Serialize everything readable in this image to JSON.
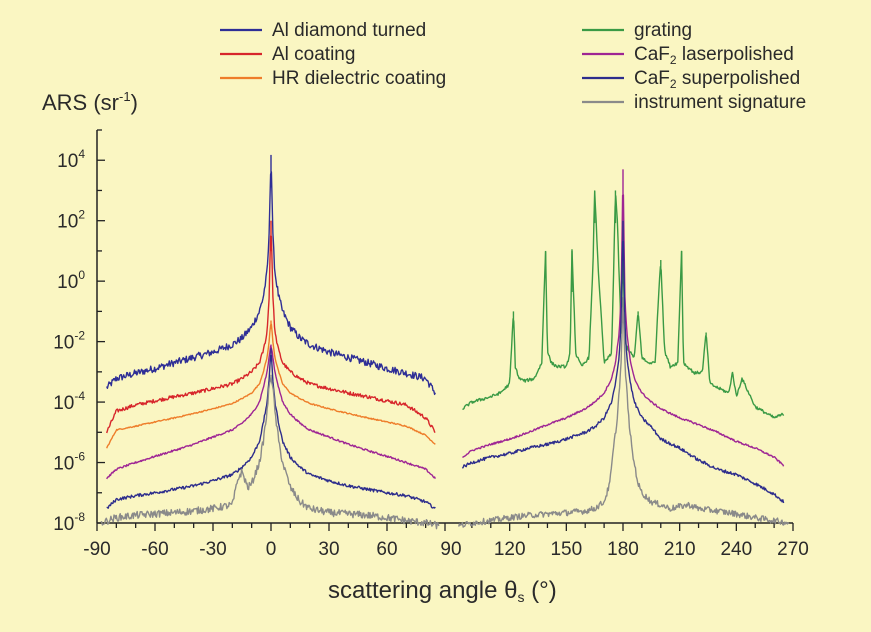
{
  "colors": {
    "background": "#FAF6C2",
    "axis": "#222222",
    "al_diamond": "#2E2E96",
    "al_coating": "#D7262B",
    "hr_dielectric": "#EE7D2A",
    "grating": "#3A9A45",
    "caf2_laser": "#9E2594",
    "caf2_super": "#2D2D8C",
    "instrument": "#8A8A8A"
  },
  "chart_data": {
    "type": "line",
    "ylabel": "ARS (sr",
    "ylabel_exp": "-1",
    "ylabel_close": ")",
    "xlabel": "scattering angle  θ",
    "xlabel_sub": "s",
    "xlabel_unit": " (°)",
    "y_scale": "log",
    "ylim": [
      1e-08,
      100000
    ],
    "y_tick_base": "10",
    "y_tick_exponents": [
      "4",
      "2",
      "0",
      "-2",
      "-4",
      "-6",
      "-8"
    ],
    "x_tick_labels": [
      "-90",
      "-60",
      "-30",
      "0",
      "30",
      "60",
      "90",
      "120",
      "150",
      "180",
      "210",
      "240",
      "270"
    ],
    "left_panel_xlim": [
      -90,
      90
    ],
    "right_panel_xlim": [
      90,
      270
    ],
    "legend_placement": "top",
    "legend": [
      {
        "label": "Al diamond turned",
        "color": "#2E2E96"
      },
      {
        "label": "Al coating",
        "color": "#D7262B"
      },
      {
        "label": "HR dielectric coating",
        "color": "#EE7D2A"
      },
      {
        "label": "grating",
        "color": "#3A9A45"
      },
      {
        "label": "CaF",
        "sub": "2",
        "rest": " laserpolished",
        "color": "#9E2594"
      },
      {
        "label": "CaF",
        "sub": "2",
        "rest": " superpolished",
        "color": "#2D2D8C"
      },
      {
        "label": "instrument signature",
        "color": "#8A8A8A"
      }
    ],
    "series": [
      {
        "name": "Al diamond turned",
        "panel": "left",
        "color": "#2E2E96",
        "x": [
          -85,
          -80,
          -70,
          -60,
          -50,
          -40,
          -30,
          -20,
          -15,
          -10,
          -6,
          -4,
          -2,
          -1,
          0,
          1,
          2,
          4,
          6,
          10,
          15,
          20,
          30,
          40,
          50,
          60,
          70,
          80,
          85
        ],
        "y": [
          0.0003,
          0.0006,
          0.0009,
          0.0013,
          0.002,
          0.003,
          0.0045,
          0.008,
          0.013,
          0.03,
          0.1,
          0.3,
          2,
          30,
          15000,
          30,
          2,
          0.3,
          0.1,
          0.03,
          0.013,
          0.008,
          0.0045,
          0.003,
          0.002,
          0.0013,
          0.0009,
          0.0006,
          0.0002
        ]
      },
      {
        "name": "Al coating",
        "panel": "left",
        "color": "#D7262B",
        "x": [
          -85,
          -80,
          -70,
          -60,
          -50,
          -40,
          -30,
          -20,
          -15,
          -10,
          -6,
          -4,
          -2,
          -1,
          0,
          1,
          2,
          4,
          6,
          10,
          15,
          20,
          30,
          40,
          50,
          60,
          70,
          80,
          85
        ],
        "y": [
          1e-05,
          5e-05,
          8e-05,
          0.00011,
          0.00015,
          0.0002,
          0.00028,
          0.0004,
          0.0006,
          0.001,
          0.002,
          0.005,
          0.02,
          0.3,
          100,
          0.3,
          0.02,
          0.005,
          0.002,
          0.001,
          0.0006,
          0.0004,
          0.00028,
          0.0002,
          0.00015,
          0.00011,
          8e-05,
          3e-05,
          1e-05
        ]
      },
      {
        "name": "HR dielectric coating",
        "panel": "left",
        "color": "#EE7D2A",
        "x": [
          -85,
          -80,
          -70,
          -60,
          -50,
          -40,
          -30,
          -20,
          -15,
          -10,
          -6,
          -4,
          -2,
          -1,
          0,
          1,
          2,
          4,
          6,
          10,
          15,
          20,
          30,
          40,
          50,
          60,
          70,
          80,
          85
        ],
        "y": [
          3e-06,
          1.2e-05,
          1.6e-05,
          2.2e-05,
          3e-05,
          4.2e-05,
          6e-05,
          9e-05,
          0.00013,
          0.0002,
          0.0004,
          0.001,
          0.003,
          0.01,
          0.05,
          0.01,
          0.003,
          0.001,
          0.0004,
          0.0002,
          0.00013,
          9e-05,
          6e-05,
          4.2e-05,
          3e-05,
          2.2e-05,
          1.6e-05,
          8e-06,
          4e-06
        ]
      },
      {
        "name": "CaF2 laserpolished (left)",
        "panel": "left",
        "color": "#9E2594",
        "x": [
          -85,
          -80,
          -70,
          -60,
          -50,
          -40,
          -30,
          -20,
          -15,
          -10,
          -6,
          -4,
          -2,
          -1,
          0,
          1,
          2,
          4,
          6,
          10,
          15,
          20,
          30,
          40,
          50,
          60,
          70,
          80,
          85
        ],
        "y": [
          3e-07,
          6e-07,
          1e-06,
          1.6e-06,
          2.5e-06,
          4e-06,
          7e-06,
          1.2e-05,
          2e-05,
          4e-05,
          0.0001,
          0.0003,
          0.001,
          0.003,
          0.008,
          0.003,
          0.001,
          0.0003,
          0.0001,
          4e-05,
          2e-05,
          1.2e-05,
          7e-06,
          4e-06,
          2.5e-06,
          1.6e-06,
          1e-06,
          6e-07,
          3e-07
        ]
      },
      {
        "name": "CaF2 superpolished (left)",
        "panel": "left",
        "color": "#2D2D8C",
        "x": [
          -85,
          -80,
          -70,
          -60,
          -50,
          -40,
          -30,
          -20,
          -15,
          -10,
          -6,
          -4,
          -2,
          -1,
          0,
          1,
          2,
          4,
          6,
          10,
          15,
          20,
          30,
          40,
          50,
          60,
          70,
          80,
          85
        ],
        "y": [
          3e-08,
          6e-08,
          8e-08,
          1e-07,
          1.3e-07,
          1.7e-07,
          2.5e-07,
          4e-07,
          7e-07,
          1.5e-06,
          5e-06,
          2e-05,
          0.0001,
          0.0005,
          0.006,
          0.0005,
          0.0001,
          2e-05,
          5e-06,
          1.5e-06,
          7e-07,
          4e-07,
          2.5e-07,
          1.7e-07,
          1.3e-07,
          1e-07,
          8e-08,
          5e-08,
          3e-08
        ]
      },
      {
        "name": "instrument signature (left)",
        "panel": "left",
        "color": "#8A8A8A",
        "x": [
          -88,
          -80,
          -70,
          -60,
          -50,
          -40,
          -30,
          -20,
          -17,
          -15,
          -12,
          -10,
          -6,
          -4,
          -2,
          -1,
          0,
          1,
          2,
          4,
          6,
          10,
          15,
          20,
          30,
          40,
          50,
          60,
          70,
          80,
          87
        ],
        "y": [
          1e-08,
          1.5e-08,
          1.8e-08,
          2e-08,
          2.2e-08,
          2.5e-08,
          3e-08,
          4e-08,
          3e-07,
          5e-07,
          1.5e-07,
          2e-07,
          1e-06,
          5e-06,
          5e-05,
          0.0003,
          0.0008,
          0.0003,
          5e-05,
          5e-06,
          1e-06,
          1.5e-07,
          5e-08,
          3e-08,
          2.2e-08,
          2e-08,
          1.8e-08,
          1.5e-08,
          1.2e-08,
          1e-08,
          8e-09
        ]
      },
      {
        "name": "grating",
        "panel": "right",
        "color": "#3A9A45",
        "x": [
          95,
          100,
          110,
          115,
          120,
          122,
          123,
          125,
          128,
          133,
          137,
          139,
          140,
          142,
          145,
          150,
          152,
          153,
          155,
          158,
          162,
          164,
          165,
          167,
          170,
          174,
          176,
          177,
          179,
          180,
          181,
          183,
          186,
          188,
          190,
          193,
          197,
          199,
          200,
          202,
          205,
          209,
          211,
          212,
          214,
          218,
          222,
          224,
          226,
          230,
          236,
          238,
          240,
          243,
          250,
          260,
          265
        ],
        "y": [
          6e-05,
          0.0001,
          0.00015,
          0.0002,
          0.0004,
          0.1,
          0.0015,
          0.0006,
          0.0005,
          0.0006,
          0.002,
          10,
          0.005,
          0.002,
          0.0015,
          0.0015,
          0.004,
          10,
          0.004,
          0.0015,
          0.003,
          2,
          1000,
          2,
          0.002,
          0.004,
          1000,
          100,
          0.02,
          10,
          0.01,
          0.005,
          0.003,
          0.1,
          0.003,
          0.002,
          0.002,
          0.5,
          5,
          0.005,
          0.0015,
          0.002,
          10,
          0.002,
          0.0015,
          0.0009,
          0.001,
          0.02,
          0.0004,
          0.0003,
          0.0002,
          0.001,
          0.00015,
          0.0006,
          7e-05,
          3e-05,
          4e-05
        ]
      },
      {
        "name": "CaF2 laserpolished (right)",
        "panel": "right",
        "color": "#9E2594",
        "x": [
          95,
          100,
          110,
          120,
          130,
          140,
          150,
          160,
          165,
          170,
          174,
          176,
          178,
          179,
          180,
          181,
          182,
          184,
          186,
          190,
          195,
          200,
          210,
          220,
          230,
          240,
          250,
          260,
          265
        ],
        "y": [
          1.5e-06,
          2.5e-06,
          4e-06,
          6e-06,
          1e-05,
          1.8e-05,
          3e-05,
          6e-05,
          0.0001,
          0.0002,
          0.0006,
          0.002,
          0.02,
          0.3,
          5000,
          0.3,
          0.02,
          0.002,
          0.0006,
          0.0002,
          0.0001,
          6e-05,
          3e-05,
          1.8e-05,
          1e-05,
          5e-06,
          3e-06,
          1.5e-06,
          8e-07
        ]
      },
      {
        "name": "CaF2 superpolished (right)",
        "panel": "right",
        "color": "#2D2D8C",
        "x": [
          95,
          100,
          110,
          120,
          130,
          140,
          150,
          160,
          165,
          170,
          174,
          176,
          178,
          179,
          180,
          181,
          182,
          184,
          186,
          190,
          195,
          200,
          210,
          220,
          230,
          240,
          250,
          260,
          265
        ],
        "y": [
          7e-07,
          1e-06,
          1.5e-06,
          2e-06,
          3e-06,
          4e-06,
          6e-06,
          1e-05,
          1.5e-05,
          3e-05,
          0.0001,
          0.0004,
          0.003,
          0.05,
          100,
          0.05,
          0.003,
          0.0004,
          0.0001,
          3e-05,
          1.5e-05,
          6e-06,
          3e-06,
          1.2e-06,
          6e-07,
          4e-07,
          2e-07,
          9e-08,
          5e-08
        ]
      },
      {
        "name": "instrument signature (right)",
        "panel": "right",
        "color": "#8A8A8A",
        "x": [
          93,
          100,
          110,
          120,
          130,
          140,
          150,
          160,
          165,
          170,
          173,
          175,
          177,
          179,
          180,
          181,
          183,
          185,
          188,
          190,
          195,
          200,
          205,
          210,
          215,
          220,
          230,
          240,
          250,
          260,
          268
        ],
        "y": [
          8e-09,
          1e-08,
          1.2e-08,
          1.5e-08,
          1.8e-08,
          2e-08,
          2.2e-08,
          2.5e-08,
          3e-08,
          5e-08,
          2e-07,
          3e-06,
          3e-05,
          0.002,
          0.3,
          0.002,
          3e-05,
          2e-06,
          2e-07,
          1e-07,
          5e-08,
          4e-08,
          3e-08,
          3.5e-08,
          4e-08,
          3e-08,
          2.5e-08,
          2e-08,
          1.5e-08,
          1.2e-08,
          1e-08
        ]
      }
    ]
  }
}
